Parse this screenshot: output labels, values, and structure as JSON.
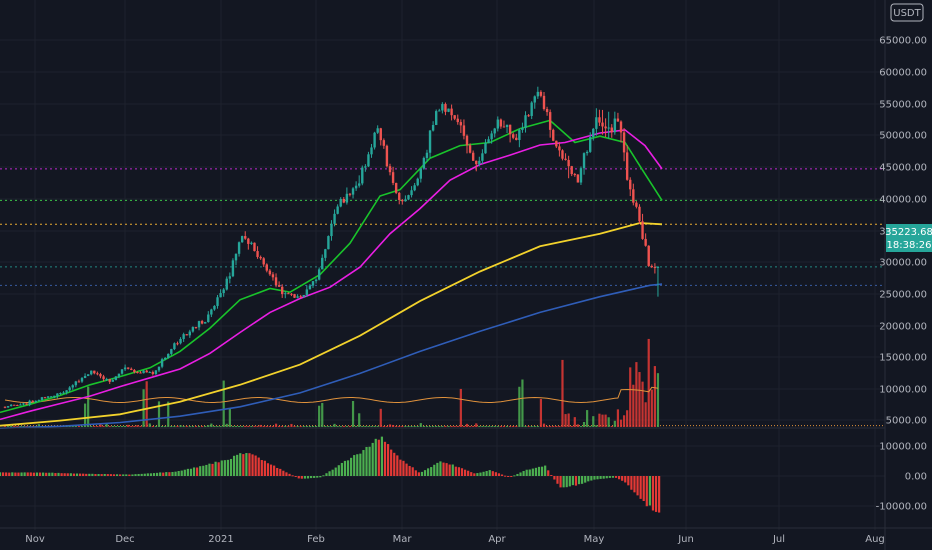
{
  "header": {
    "currency_label": "USDT",
    "top_tick_partial": "7("
  },
  "price_badge": {
    "price": "35223.68",
    "countdown": "18:38:26"
  },
  "colors": {
    "background": "#131722",
    "up": "#26a69a",
    "down": "#ef5350",
    "vol_up": "#4caf50",
    "vol_down": "#e53935",
    "ma_green": "#19c32b",
    "ma_magenta": "#e91ee3",
    "ma_yellow": "#f2d22c",
    "ma_blue": "#2f5db8",
    "level_magenta": "#c42bd6",
    "level_green": "#3ecf4c",
    "level_yellow": "#f2b233",
    "level_orange": "#e0923c",
    "badge": "#26a69a"
  },
  "chart_data": [
    {
      "type": "candlestick",
      "title": "",
      "x_ticks": [
        "Nov",
        "Dec",
        "2021",
        "Feb",
        "Mar",
        "Apr",
        "May",
        "Jun",
        "Jul",
        "Aug"
      ],
      "y_ticks": [
        "65000.00",
        "60000.00",
        "55000.00",
        "50000.00",
        "45000.00",
        "40000.00",
        "35000.00",
        "30000.00",
        "25000.00",
        "20000.00",
        "15000.00",
        "10000.00",
        "5000.00"
      ],
      "ylim": [
        4000,
        70000
      ],
      "horizontal_levels": [
        {
          "color": "magenta",
          "value": 50800
        },
        {
          "color": "green",
          "value": 45800
        },
        {
          "color": "yellow",
          "value": 42000
        },
        {
          "color": "blue",
          "value": 32300
        },
        {
          "color": "teal",
          "value": 35223.68
        }
      ],
      "price_path": [
        {
          "date": "2020-10-22",
          "close": 13000
        },
        {
          "date": "2020-11-01",
          "close": 13800
        },
        {
          "date": "2020-11-10",
          "close": 15300
        },
        {
          "date": "2020-11-20",
          "close": 18600
        },
        {
          "date": "2020-11-26",
          "close": 17000
        },
        {
          "date": "2020-12-01",
          "close": 19000
        },
        {
          "date": "2020-12-10",
          "close": 18300
        },
        {
          "date": "2020-12-17",
          "close": 23000
        },
        {
          "date": "2020-12-27",
          "close": 27000
        },
        {
          "date": "2021-01-03",
          "close": 33000
        },
        {
          "date": "2021-01-08",
          "close": 40500
        },
        {
          "date": "2021-01-13",
          "close": 37000
        },
        {
          "date": "2021-01-21",
          "close": 31000
        },
        {
          "date": "2021-01-27",
          "close": 30500
        },
        {
          "date": "2021-02-01",
          "close": 33000
        },
        {
          "date": "2021-02-08",
          "close": 45000
        },
        {
          "date": "2021-02-14",
          "close": 48000
        },
        {
          "date": "2021-02-21",
          "close": 57500
        },
        {
          "date": "2021-02-28",
          "close": 45200
        },
        {
          "date": "2021-03-06",
          "close": 48500
        },
        {
          "date": "2021-03-13",
          "close": 61000
        },
        {
          "date": "2021-03-20",
          "close": 58000
        },
        {
          "date": "2021-03-25",
          "close": 51000
        },
        {
          "date": "2021-04-01",
          "close": 58500
        },
        {
          "date": "2021-04-07",
          "close": 56000
        },
        {
          "date": "2021-04-14",
          "close": 63500
        },
        {
          "date": "2021-04-18",
          "close": 56000
        },
        {
          "date": "2021-04-25",
          "close": 49000
        },
        {
          "date": "2021-05-01",
          "close": 57500
        },
        {
          "date": "2021-05-07",
          "close": 57500
        },
        {
          "date": "2021-05-10",
          "close": 56500
        },
        {
          "date": "2021-05-12",
          "close": 50000
        },
        {
          "date": "2021-05-16",
          "close": 44000
        },
        {
          "date": "2021-05-19",
          "close": 37000
        },
        {
          "date": "2021-05-21",
          "close": 36000
        },
        {
          "date": "2021-05-23",
          "close": 35223.68
        }
      ],
      "moving_averages": [
        {
          "color": "green",
          "path": [
            [
              0,
              12100
            ],
            [
              30,
              13400
            ],
            [
              60,
              14800
            ],
            [
              90,
              16500
            ],
            [
              120,
              17800
            ],
            [
              150,
              19200
            ],
            [
              180,
              21800
            ],
            [
              210,
              25500
            ],
            [
              240,
              30000
            ],
            [
              270,
              31800
            ],
            [
              290,
              31200
            ],
            [
              320,
              34000
            ],
            [
              350,
              39000
            ],
            [
              380,
              46500
            ],
            [
              400,
              47500
            ],
            [
              430,
              52500
            ],
            [
              460,
              54500
            ],
            [
              490,
              55000
            ],
            [
              520,
              57200
            ],
            [
              550,
              58500
            ],
            [
              575,
              55000
            ],
            [
              600,
              56000
            ],
            [
              625,
              55000
            ],
            [
              645,
              50000
            ],
            [
              662,
              45800
            ]
          ]
        },
        {
          "color": "magenta",
          "path": [
            [
              0,
              11000
            ],
            [
              30,
              12300
            ],
            [
              60,
              13500
            ],
            [
              90,
              14700
            ],
            [
              120,
              16200
            ],
            [
              150,
              17600
            ],
            [
              180,
              19000
            ],
            [
              210,
              21500
            ],
            [
              240,
              24800
            ],
            [
              270,
              28000
            ],
            [
              300,
              30200
            ],
            [
              330,
              32000
            ],
            [
              360,
              35200
            ],
            [
              390,
              40500
            ],
            [
              420,
              44500
            ],
            [
              450,
              49000
            ],
            [
              480,
              51500
            ],
            [
              510,
              53000
            ],
            [
              540,
              54600
            ],
            [
              565,
              55000
            ],
            [
              600,
              56500
            ],
            [
              625,
              57000
            ],
            [
              645,
              54500
            ],
            [
              662,
              50800
            ]
          ]
        },
        {
          "color": "yellow",
          "path": [
            [
              0,
              10000
            ],
            [
              60,
              10800
            ],
            [
              120,
              11800
            ],
            [
              180,
              13800
            ],
            [
              240,
              16500
            ],
            [
              300,
              19700
            ],
            [
              360,
              24300
            ],
            [
              420,
              29800
            ],
            [
              480,
              34500
            ],
            [
              540,
              38500
            ],
            [
              600,
              40500
            ],
            [
              640,
              42200
            ],
            [
              662,
              42000
            ]
          ]
        },
        {
          "color": "blue",
          "path": [
            [
              0,
              9600
            ],
            [
              60,
              9900
            ],
            [
              120,
              10500
            ],
            [
              180,
              11500
            ],
            [
              240,
              13000
            ],
            [
              300,
              15200
            ],
            [
              360,
              18300
            ],
            [
              420,
              21800
            ],
            [
              480,
              25000
            ],
            [
              540,
              28000
            ],
            [
              600,
              30500
            ],
            [
              650,
              32300
            ],
            [
              662,
              32500
            ]
          ]
        }
      ],
      "volume": {
        "line_level": 10000,
        "peak_value": 21000
      }
    },
    {
      "type": "bar",
      "title": "",
      "y_ticks": [
        "10000.00",
        "0.00",
        "-10000.00"
      ],
      "ylim": [
        -15000,
        15000
      ],
      "histogram_path": [
        [
          0,
          1200
        ],
        [
          40,
          1200
        ],
        [
          80,
          800
        ],
        [
          130,
          500
        ],
        [
          175,
          1500
        ],
        [
          200,
          3200
        ],
        [
          230,
          6000
        ],
        [
          248,
          8500
        ],
        [
          262,
          5500
        ],
        [
          282,
          2000
        ],
        [
          300,
          -1000
        ],
        [
          320,
          -500
        ],
        [
          345,
          5000
        ],
        [
          365,
          9000
        ],
        [
          380,
          13500
        ],
        [
          400,
          6000
        ],
        [
          420,
          1000
        ],
        [
          440,
          5000
        ],
        [
          455,
          3500
        ],
        [
          475,
          800
        ],
        [
          490,
          2000
        ],
        [
          510,
          -500
        ],
        [
          525,
          2000
        ],
        [
          545,
          3500
        ],
        [
          560,
          -4000
        ],
        [
          578,
          -3000
        ],
        [
          595,
          -1200
        ],
        [
          615,
          -500
        ],
        [
          625,
          -2000
        ],
        [
          640,
          -8000
        ],
        [
          655,
          -12000
        ],
        [
          662,
          -14000
        ]
      ]
    }
  ]
}
